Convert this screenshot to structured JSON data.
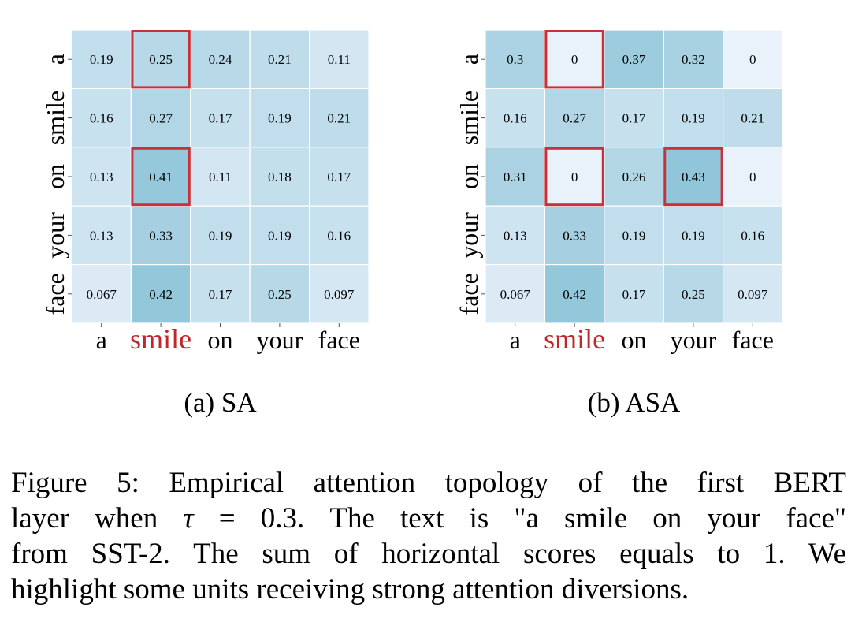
{
  "chart_data": [
    {
      "type": "heatmap",
      "subcaption": "(a) SA",
      "x_tokens": [
        "a",
        "smile",
        "on",
        "your",
        "face"
      ],
      "y_tokens": [
        "a",
        "smile",
        "on",
        "your",
        "face"
      ],
      "highlight_token": "smile",
      "values": [
        [
          0.19,
          0.25,
          0.24,
          0.21,
          0.11
        ],
        [
          0.16,
          0.27,
          0.17,
          0.19,
          0.21
        ],
        [
          0.13,
          0.41,
          0.11,
          0.18,
          0.17
        ],
        [
          0.13,
          0.33,
          0.19,
          0.19,
          0.16
        ],
        [
          0.067,
          0.42,
          0.17,
          0.25,
          0.097
        ]
      ],
      "value_labels": [
        [
          "0.19",
          "0.25",
          "0.24",
          "0.21",
          "0.11"
        ],
        [
          "0.16",
          "0.27",
          "0.17",
          "0.19",
          "0.21"
        ],
        [
          "0.13",
          "0.41",
          "0.11",
          "0.18",
          "0.17"
        ],
        [
          "0.13",
          "0.33",
          "0.19",
          "0.19",
          "0.16"
        ],
        [
          "0.067",
          "0.42",
          "0.17",
          "0.25",
          "0.097"
        ]
      ],
      "highlighted_cells": [
        [
          0,
          1
        ],
        [
          2,
          1
        ]
      ]
    },
    {
      "type": "heatmap",
      "subcaption": "(b) ASA",
      "x_tokens": [
        "a",
        "smile",
        "on",
        "your",
        "face"
      ],
      "y_tokens": [
        "a",
        "smile",
        "on",
        "your",
        "face"
      ],
      "highlight_token": "smile",
      "values": [
        [
          0.3,
          0,
          0.37,
          0.32,
          0
        ],
        [
          0.16,
          0.27,
          0.17,
          0.19,
          0.21
        ],
        [
          0.31,
          0,
          0.26,
          0.43,
          0
        ],
        [
          0.13,
          0.33,
          0.19,
          0.19,
          0.16
        ],
        [
          0.067,
          0.42,
          0.17,
          0.25,
          0.097
        ]
      ],
      "value_labels": [
        [
          "0.3",
          "0",
          "0.37",
          "0.32",
          "0"
        ],
        [
          "0.16",
          "0.27",
          "0.17",
          "0.19",
          "0.21"
        ],
        [
          "0.31",
          "0",
          "0.26",
          "0.43",
          "0"
        ],
        [
          "0.13",
          "0.33",
          "0.19",
          "0.19",
          "0.16"
        ],
        [
          "0.067",
          "0.42",
          "0.17",
          "0.25",
          "0.097"
        ]
      ],
      "highlighted_cells": [
        [
          0,
          1
        ],
        [
          2,
          1
        ],
        [
          2,
          3
        ]
      ]
    }
  ],
  "colors": {
    "heat_low": "#e9f1fa",
    "heat_high": "#8dc4d8",
    "highlight_box": "#c8313a",
    "highlight_token": "#c0272d",
    "text": "#000000"
  },
  "caption": {
    "line1_pre": "Figure 5: Empirical attention topology of the first BERT",
    "line2_pre": "layer when",
    "line2_symbol": "τ",
    "line2_eq": "=",
    "line2_value": "0.3.",
    "line2_post": "The text is \"a smile on your face\"",
    "line3": "from SST-2. The sum of horizontal scores equals to 1. We",
    "line4": "highlight some units receiving strong attention diversions."
  }
}
